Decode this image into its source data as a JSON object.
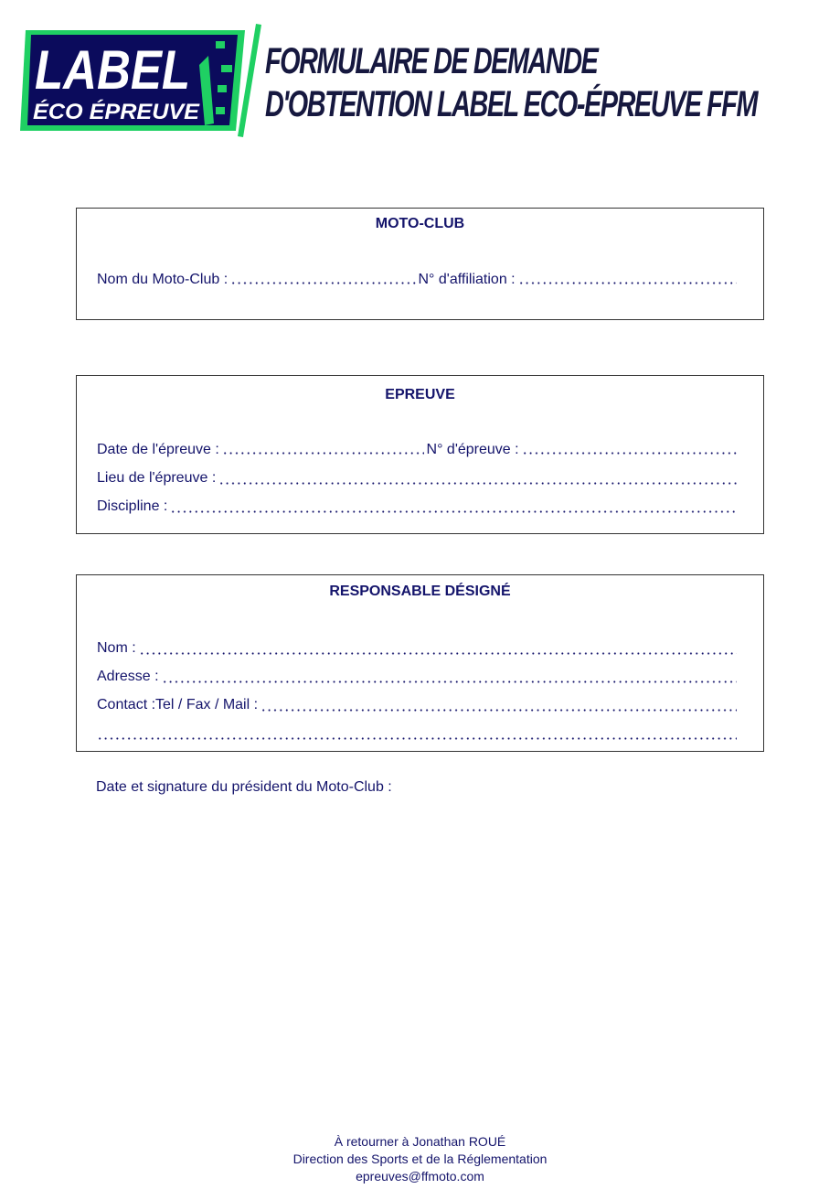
{
  "header": {
    "logo": {
      "line1": "LABEL",
      "line2": "ÉCO ÉPREUVE",
      "colors": {
        "navy": "#0b0b5c",
        "green": "#1fd063"
      }
    },
    "title_line1": "FORMULAIRE DE DEMANDE",
    "title_line2": "D'OBTENTION LABEL ECO-ÉPREUVE  FFM"
  },
  "moto_club": {
    "title": "MOTO-CLUB",
    "name_label": "Nom du Moto-Club :",
    "affiliation_label": "N° d'affiliation :"
  },
  "epreuve": {
    "title": "EPREUVE",
    "date_label": "Date de l'épreuve :",
    "number_label": "N° d'épreuve :",
    "lieu_label": "Lieu de l'épreuve :",
    "discipline_label": "Discipline :"
  },
  "responsable": {
    "title": "RESPONSABLE DÉSIGNÉ",
    "nom_label": "Nom :",
    "adresse_label": "Adresse :",
    "contact_label": "Contact :Tel / Fax / Mail :"
  },
  "signature_label": "Date et signature du président du Moto-Club :",
  "footer": {
    "line1": "À retourner à Jonathan ROUÉ",
    "line2": "Direction des Sports et de la Réglementation",
    "email": "epreuves@ffmoto.com"
  }
}
